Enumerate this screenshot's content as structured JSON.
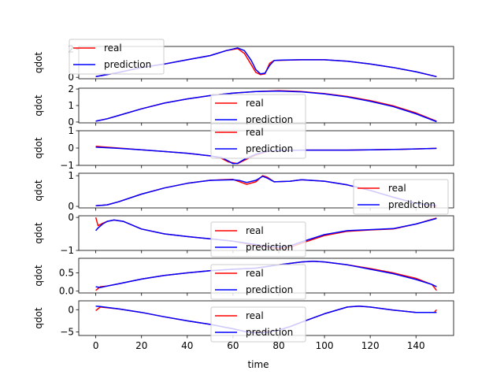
{
  "figure": {
    "background": "#ffffff",
    "xlabel": "time",
    "shared_x_ticks": [
      "0",
      "20",
      "40",
      "60",
      "80",
      "100",
      "120",
      "140"
    ]
  },
  "colors": {
    "real": "#ff0000",
    "prediction": "#0000ff"
  },
  "chart_data": [
    {
      "type": "line",
      "ylabel": "qdot",
      "xlim": [
        -7.45,
        156.45
      ],
      "ylim": [
        -0.1,
        2.2
      ],
      "yticks": [
        0,
        2
      ],
      "ytick_labels": [
        "0",
        "2"
      ],
      "legend": {
        "placement": "top-left",
        "entries": [
          "real",
          "prediction"
        ]
      },
      "series": [
        {
          "name": "real",
          "x": [
            0,
            10,
            20,
            30,
            40,
            50,
            57,
            62,
            65,
            68,
            70,
            72,
            74,
            76,
            78,
            82,
            90,
            100,
            110,
            120,
            130,
            140,
            149
          ],
          "values": [
            0.05,
            0.35,
            0.7,
            0.95,
            1.25,
            1.55,
            1.9,
            2.05,
            1.7,
            0.9,
            0.35,
            0.2,
            0.25,
            1.0,
            1.2,
            1.22,
            1.25,
            1.25,
            1.15,
            0.95,
            0.7,
            0.4,
            0.05
          ]
        },
        {
          "name": "prediction",
          "x": [
            0,
            10,
            20,
            30,
            40,
            50,
            57,
            62,
            65,
            68,
            70,
            72,
            74,
            76,
            78,
            82,
            90,
            100,
            110,
            120,
            130,
            140,
            149
          ],
          "values": [
            0.05,
            0.35,
            0.7,
            0.95,
            1.25,
            1.55,
            1.9,
            2.1,
            1.9,
            1.2,
            0.55,
            0.25,
            0.3,
            0.85,
            1.2,
            1.23,
            1.25,
            1.25,
            1.15,
            0.95,
            0.7,
            0.4,
            0.05
          ]
        }
      ]
    },
    {
      "type": "line",
      "ylabel": "qdot",
      "xlim": [
        -7.45,
        156.45
      ],
      "ylim": [
        -0.05,
        2.05
      ],
      "yticks": [
        0,
        1,
        2
      ],
      "ytick_labels": [
        "0",
        "1",
        "2"
      ],
      "legend": {
        "placement": "lower-center",
        "entries": [
          "real",
          "prediction"
        ]
      },
      "series": [
        {
          "name": "real",
          "x": [
            0,
            5,
            10,
            20,
            30,
            40,
            50,
            60,
            70,
            80,
            90,
            100,
            110,
            120,
            130,
            140,
            149
          ],
          "values": [
            0.05,
            0.2,
            0.4,
            0.8,
            1.15,
            1.4,
            1.6,
            1.75,
            1.85,
            1.9,
            1.85,
            1.72,
            1.55,
            1.3,
            0.98,
            0.55,
            0.05
          ]
        },
        {
          "name": "prediction",
          "x": [
            0,
            5,
            10,
            20,
            30,
            40,
            50,
            60,
            70,
            80,
            90,
            100,
            110,
            120,
            130,
            140,
            149
          ],
          "values": [
            0.05,
            0.2,
            0.4,
            0.8,
            1.15,
            1.4,
            1.6,
            1.75,
            1.85,
            1.88,
            1.83,
            1.7,
            1.52,
            1.26,
            0.94,
            0.5,
            0.02
          ]
        }
      ]
    },
    {
      "type": "line",
      "ylabel": "qdot",
      "xlim": [
        -7.45,
        156.45
      ],
      "ylim": [
        -1.0,
        1.0
      ],
      "yticks": [
        -1,
        0,
        1
      ],
      "ytick_labels": [
        "−1",
        "0",
        "1"
      ],
      "legend": {
        "placement": "upper-center",
        "entries": [
          "real",
          "prediction"
        ]
      },
      "series": [
        {
          "name": "real",
          "x": [
            0,
            10,
            20,
            30,
            40,
            50,
            55,
            58,
            60,
            62,
            65,
            70,
            75,
            80,
            90,
            100,
            110,
            120,
            130,
            140,
            149
          ],
          "values": [
            0.1,
            0.0,
            -0.1,
            -0.2,
            -0.3,
            -0.45,
            -0.6,
            -0.8,
            -0.85,
            -0.9,
            -0.7,
            -0.4,
            -0.2,
            -0.15,
            -0.12,
            -0.12,
            -0.12,
            -0.1,
            -0.08,
            -0.05,
            -0.02
          ]
        },
        {
          "name": "prediction",
          "x": [
            0,
            10,
            20,
            30,
            40,
            50,
            55,
            58,
            60,
            62,
            65,
            70,
            75,
            80,
            90,
            100,
            110,
            120,
            130,
            140,
            149
          ],
          "values": [
            0.05,
            -0.02,
            -0.1,
            -0.2,
            -0.3,
            -0.45,
            -0.55,
            -0.75,
            -0.9,
            -0.88,
            -0.65,
            -0.35,
            -0.18,
            -0.15,
            -0.12,
            -0.12,
            -0.12,
            -0.1,
            -0.08,
            -0.05,
            -0.02
          ]
        }
      ]
    },
    {
      "type": "line",
      "ylabel": "qdot",
      "xlim": [
        -7.45,
        156.45
      ],
      "ylim": [
        -0.05,
        1.08
      ],
      "yticks": [
        0,
        1
      ],
      "ytick_labels": [
        "0",
        "1"
      ],
      "legend": {
        "placement": "lower-right",
        "entries": [
          "real",
          "prediction"
        ]
      },
      "series": [
        {
          "name": "real",
          "x": [
            0,
            5,
            10,
            20,
            30,
            40,
            50,
            55,
            60,
            63,
            66,
            70,
            73,
            75,
            78,
            85,
            90,
            100,
            110,
            120,
            130,
            140,
            148,
            149
          ],
          "values": [
            0.02,
            0.05,
            0.15,
            0.4,
            0.6,
            0.75,
            0.85,
            0.87,
            0.88,
            0.8,
            0.72,
            0.8,
            1.0,
            0.95,
            0.8,
            0.82,
            0.87,
            0.82,
            0.7,
            0.52,
            0.3,
            0.1,
            0.02,
            -0.05
          ]
        },
        {
          "name": "prediction",
          "x": [
            0,
            5,
            10,
            20,
            30,
            40,
            50,
            55,
            60,
            63,
            66,
            70,
            73,
            75,
            78,
            85,
            90,
            100,
            110,
            120,
            130,
            140,
            148,
            149
          ],
          "values": [
            0.02,
            0.05,
            0.15,
            0.4,
            0.6,
            0.75,
            0.85,
            0.86,
            0.87,
            0.84,
            0.78,
            0.85,
            0.98,
            0.92,
            0.8,
            0.82,
            0.87,
            0.82,
            0.7,
            0.52,
            0.3,
            0.1,
            0.04,
            0.02
          ]
        }
      ]
    },
    {
      "type": "line",
      "ylabel": "qdot",
      "xlim": [
        -7.45,
        156.45
      ],
      "ylim": [
        -1.0,
        0.05
      ],
      "yticks": [
        -1,
        0
      ],
      "ytick_labels": [
        "−1",
        "0"
      ],
      "legend": {
        "placement": "lower-center",
        "entries": [
          "real",
          "prediction"
        ]
      },
      "series": [
        {
          "name": "real",
          "x": [
            0,
            1,
            3,
            5,
            8,
            12,
            20,
            30,
            40,
            50,
            60,
            70,
            75,
            80,
            85,
            90,
            100,
            110,
            120,
            130,
            140,
            149
          ],
          "values": [
            0.0,
            -0.25,
            -0.18,
            -0.12,
            -0.08,
            -0.12,
            -0.35,
            -0.5,
            -0.58,
            -0.65,
            -0.72,
            -0.85,
            -0.9,
            -0.95,
            -0.9,
            -0.78,
            -0.55,
            -0.42,
            -0.38,
            -0.35,
            -0.2,
            -0.02
          ]
        },
        {
          "name": "prediction",
          "x": [
            0,
            1,
            3,
            5,
            8,
            12,
            20,
            30,
            40,
            50,
            60,
            70,
            75,
            80,
            85,
            90,
            100,
            110,
            120,
            130,
            140,
            149
          ],
          "values": [
            -0.4,
            -0.32,
            -0.2,
            -0.12,
            -0.08,
            -0.12,
            -0.35,
            -0.5,
            -0.58,
            -0.65,
            -0.72,
            -0.82,
            -0.88,
            -0.9,
            -0.86,
            -0.74,
            -0.52,
            -0.4,
            -0.37,
            -0.34,
            -0.2,
            -0.03
          ]
        }
      ]
    },
    {
      "type": "line",
      "ylabel": "qdot",
      "xlim": [
        -7.45,
        156.45
      ],
      "ylim": [
        -0.05,
        0.9
      ],
      "yticks": [
        0,
        0.5
      ],
      "ytick_labels": [
        "0.0",
        "0.5"
      ],
      "legend": {
        "placement": "lower-center",
        "entries": [
          "real",
          "prediction"
        ]
      },
      "series": [
        {
          "name": "real",
          "x": [
            0,
            2,
            5,
            10,
            20,
            30,
            40,
            50,
            60,
            70,
            80,
            90,
            95,
            100,
            110,
            120,
            130,
            140,
            147,
            149
          ],
          "values": [
            0.02,
            0.12,
            0.14,
            0.2,
            0.33,
            0.43,
            0.5,
            0.56,
            0.6,
            0.63,
            0.72,
            0.8,
            0.82,
            0.8,
            0.72,
            0.62,
            0.5,
            0.35,
            0.18,
            0.02
          ]
        },
        {
          "name": "prediction",
          "x": [
            0,
            2,
            5,
            10,
            20,
            30,
            40,
            50,
            60,
            70,
            80,
            90,
            95,
            100,
            110,
            120,
            130,
            140,
            147,
            149
          ],
          "values": [
            0.12,
            0.1,
            0.14,
            0.2,
            0.33,
            0.43,
            0.5,
            0.56,
            0.6,
            0.63,
            0.72,
            0.8,
            0.82,
            0.8,
            0.72,
            0.6,
            0.48,
            0.32,
            0.18,
            0.12
          ]
        }
      ]
    },
    {
      "type": "line",
      "ylabel": "qdot",
      "xlim": [
        -7.45,
        156.45
      ],
      "ylim": [
        -5.8,
        2.0
      ],
      "yticks": [
        -5,
        0
      ],
      "ytick_labels": [
        "−5",
        "0"
      ],
      "legend": {
        "placement": "lower-center",
        "entries": [
          "real",
          "prediction"
        ]
      },
      "series": [
        {
          "name": "real",
          "x": [
            0,
            2,
            10,
            20,
            30,
            40,
            50,
            60,
            65,
            70,
            75,
            80,
            85,
            90,
            100,
            110,
            115,
            120,
            130,
            140,
            148,
            149
          ],
          "values": [
            -0.2,
            0.6,
            0.2,
            -0.6,
            -1.6,
            -2.5,
            -3.3,
            -4.3,
            -4.9,
            -5.1,
            -5.0,
            -4.6,
            -3.8,
            -2.8,
            -0.9,
            0.6,
            0.8,
            0.6,
            -0.1,
            -0.6,
            -0.6,
            0.0
          ]
        },
        {
          "name": "prediction",
          "x": [
            0,
            2,
            10,
            20,
            30,
            40,
            50,
            60,
            65,
            70,
            75,
            80,
            85,
            90,
            100,
            110,
            115,
            120,
            130,
            140,
            148,
            149
          ],
          "values": [
            0.8,
            0.7,
            0.2,
            -0.6,
            -1.6,
            -2.5,
            -3.3,
            -4.3,
            -4.9,
            -5.2,
            -5.1,
            -4.6,
            -3.8,
            -2.8,
            -0.9,
            0.6,
            0.8,
            0.6,
            -0.1,
            -0.6,
            -0.6,
            -0.6
          ]
        }
      ]
    }
  ]
}
